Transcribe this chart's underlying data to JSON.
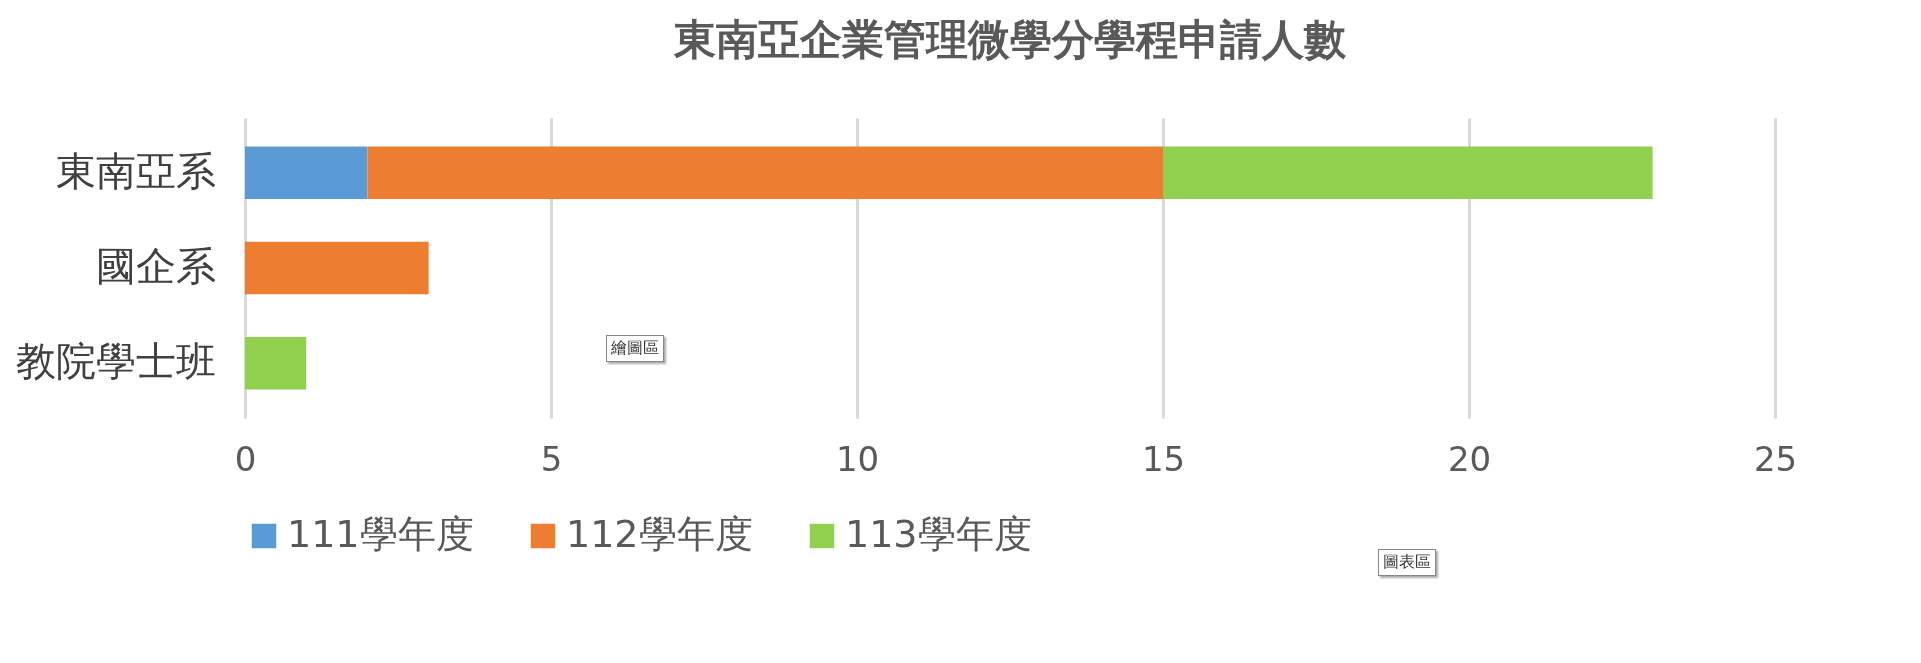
{
  "chart_data": {
    "type": "bar",
    "orientation": "horizontal",
    "stacked": true,
    "title": "東南亞企業管理微學分學程申請人數",
    "categories": [
      "東南亞系",
      "國企系",
      "教院學士班"
    ],
    "series": [
      {
        "name": "111學年度",
        "color": "#5b9bd5",
        "values": [
          2,
          null,
          null
        ]
      },
      {
        "name": "112學年度",
        "color": "#ed7d31",
        "values": [
          13,
          3,
          null
        ]
      },
      {
        "name": "113學年度",
        "color": "#92d050",
        "values": [
          8,
          null,
          1
        ]
      }
    ],
    "xlim": [
      0,
      25
    ],
    "xticks": [
      0,
      5,
      10,
      15,
      20,
      25
    ],
    "grid": "x",
    "legend": "bottom",
    "annotations": [
      "繪圖區",
      "圖表區"
    ]
  }
}
